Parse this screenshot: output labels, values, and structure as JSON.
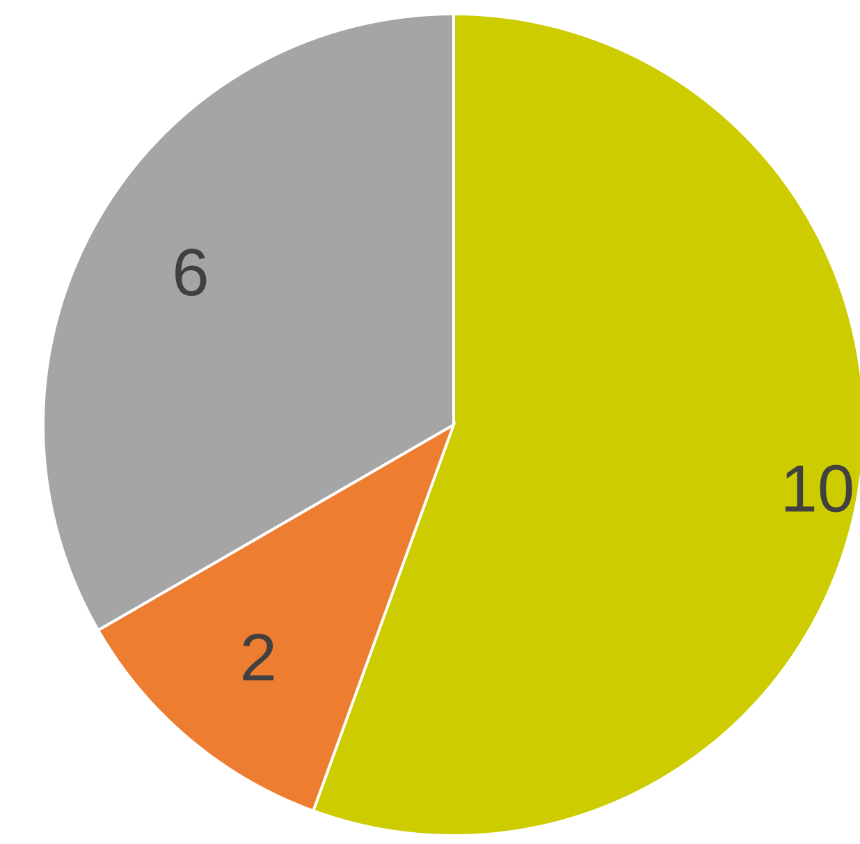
{
  "chart_data": {
    "type": "pie",
    "title": "",
    "start_angle_deg": 0,
    "direction": "clockwise",
    "slices": [
      {
        "label": "10",
        "value": 10,
        "color": "#CCCC00"
      },
      {
        "label": "2",
        "value": 2,
        "color": "#ED7D31"
      },
      {
        "label": "6",
        "value": 6,
        "color": "#A5A5A5"
      }
    ],
    "legend": "none"
  }
}
